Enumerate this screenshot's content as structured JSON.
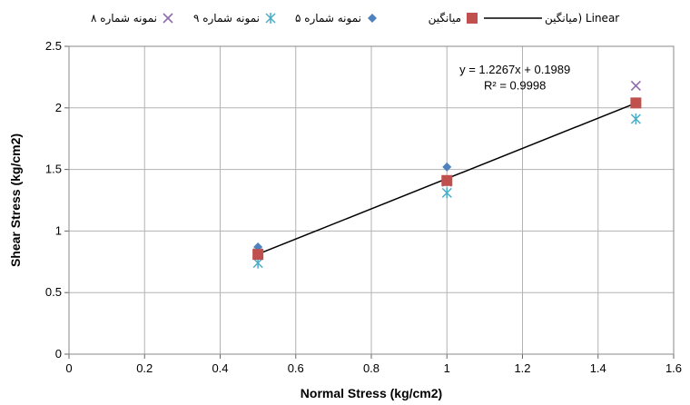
{
  "chart_data": {
    "type": "scatter",
    "title": "",
    "xlabel": "Normal Stress (kg/cm2)",
    "ylabel": "Shear Stress (kg/cm2)",
    "xlim": [
      0,
      1.6
    ],
    "ylim": [
      0,
      2.5
    ],
    "x_ticks": [
      "0",
      "0.2",
      "0.4",
      "0.6",
      "0.8",
      "1",
      "1.2",
      "1.4",
      "1.6"
    ],
    "y_ticks": [
      "0",
      "0.5",
      "1",
      "1.5",
      "2",
      "2.5"
    ],
    "grid": true,
    "legend_position": "top",
    "series": [
      {
        "name": "نمونه شماره ۸",
        "marker": "x",
        "color": "#8E6BB0",
        "points": [
          [
            0.5,
            0.82
          ],
          [
            1.0,
            1.4
          ],
          [
            1.5,
            2.18
          ]
        ]
      },
      {
        "name": "نمونه شماره ۹",
        "marker": "asterisk",
        "color": "#4BACC6",
        "points": [
          [
            0.5,
            0.74
          ],
          [
            1.0,
            1.31
          ],
          [
            1.5,
            1.91
          ]
        ]
      },
      {
        "name": "نمونه شماره ۵",
        "marker": "diamond",
        "color": "#4F81BD",
        "points": [
          [
            0.5,
            0.87
          ],
          [
            1.0,
            1.52
          ],
          [
            1.5,
            2.05
          ]
        ]
      },
      {
        "name": "میانگین",
        "marker": "square",
        "color": "#C0504D",
        "points": [
          [
            0.5,
            0.81
          ],
          [
            1.0,
            1.41
          ],
          [
            1.5,
            2.04
          ]
        ]
      }
    ],
    "trendline": {
      "name": "Linear (میانگین)",
      "legend_rtl": "میانگین) Linear",
      "color": "#000000",
      "slope": 1.2267,
      "intercept": 0.1989,
      "x_range": [
        0.5,
        1.5
      ],
      "equation": "y = 1.2267x + 0.1989",
      "r2": "R² = 0.9998"
    }
  }
}
